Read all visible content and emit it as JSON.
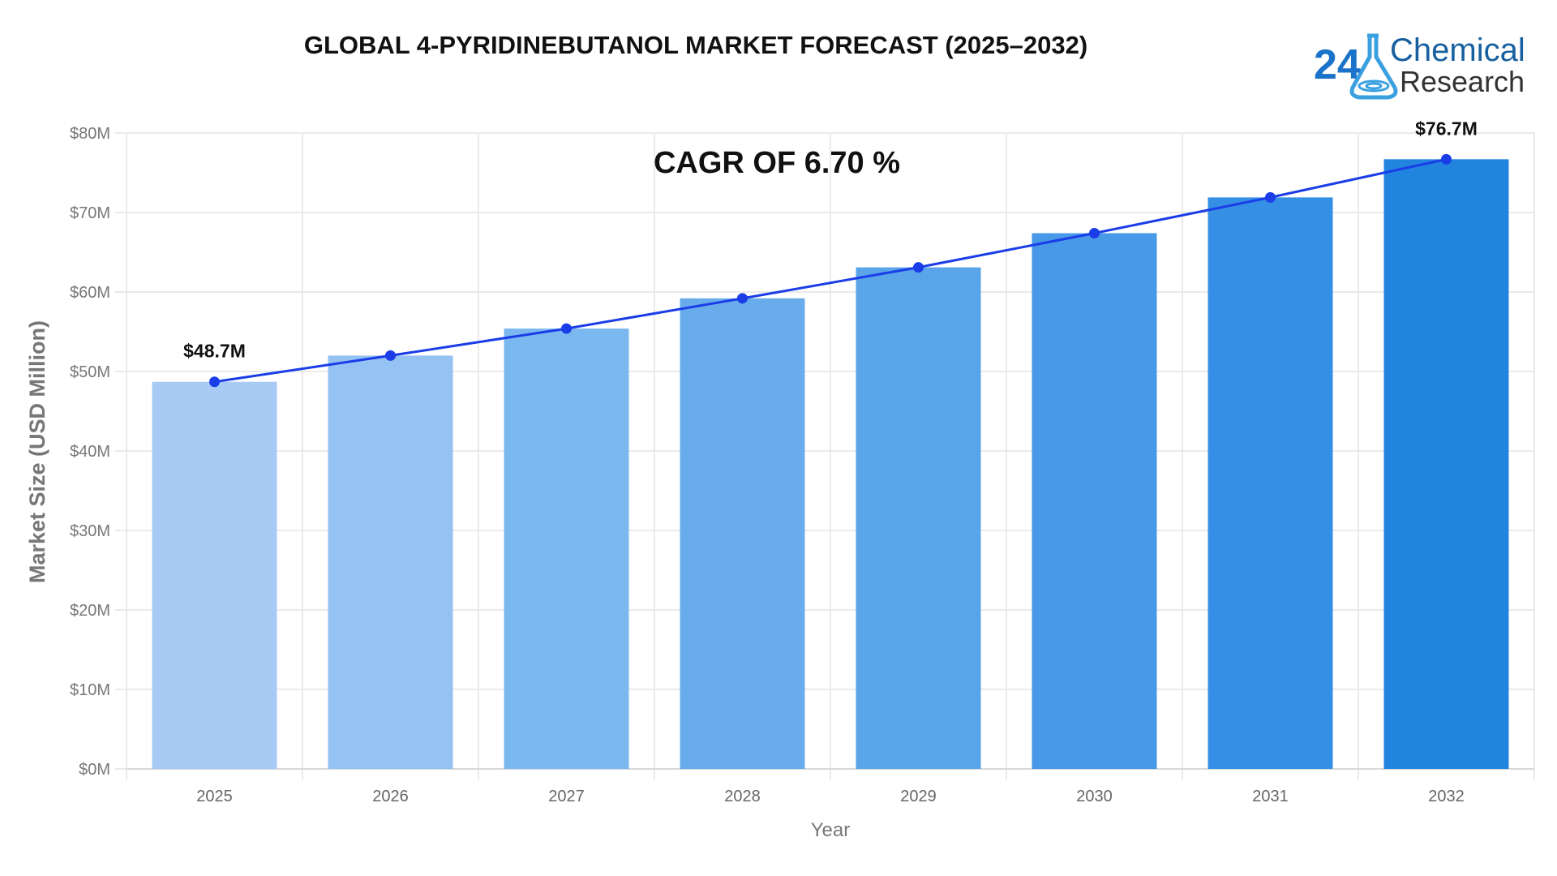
{
  "title": "GLOBAL 4-PYRIDINEBUTANOL MARKET FORECAST (2025–2032)",
  "cagr_label": "CAGR OF 6.70 %",
  "logo": {
    "number": "24",
    "line1": "Chemical",
    "line2": "Research"
  },
  "chart_data": {
    "type": "bar",
    "title": "GLOBAL 4-PYRIDINEBUTANOL MARKET FORECAST (2025–2032)",
    "xlabel": "Year",
    "ylabel": "Market Size (USD Million)",
    "categories": [
      "2025",
      "2026",
      "2027",
      "2028",
      "2029",
      "2030",
      "2031",
      "2032"
    ],
    "values": [
      48.7,
      52.0,
      55.4,
      59.2,
      63.1,
      67.4,
      71.9,
      76.7
    ],
    "line_overlay": true,
    "ylim": [
      0,
      80
    ],
    "yticks": [
      0,
      10,
      20,
      30,
      40,
      50,
      60,
      70,
      80
    ],
    "ytick_labels": [
      "$0M",
      "$10M",
      "$20M",
      "$30M",
      "$40M",
      "$50M",
      "$60M",
      "$70M",
      "$80M"
    ],
    "data_labels": [
      {
        "category": "2025",
        "text": "$48.7M"
      },
      {
        "category": "2032",
        "text": "$76.7M"
      }
    ],
    "grid": true,
    "bar_colors": [
      "#a7cbf5",
      "#94c2f3",
      "#7bb8f0",
      "#69acec",
      "#5aa4ea",
      "#4899e7",
      "#3590e5",
      "#2185e0"
    ],
    "line_color": "#1a3de8"
  }
}
